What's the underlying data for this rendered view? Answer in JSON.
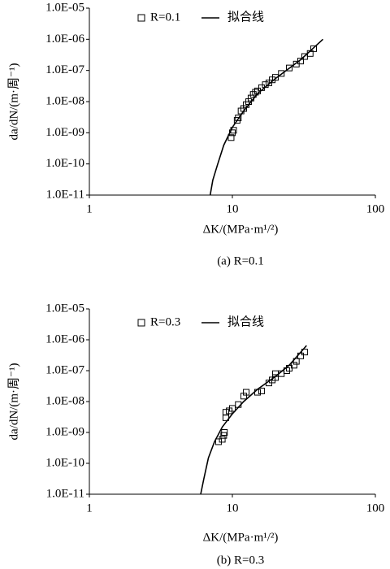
{
  "chart_data": [
    {
      "type": "scatter",
      "caption": "(a) R=0.1",
      "x_label": "ΔK/(MPa·m¹/²)",
      "y_label": "da/dN/(m·周⁻¹)",
      "xscale": "log",
      "yscale": "log",
      "xlim": [
        1,
        100
      ],
      "ylim": [
        1e-11,
        1e-05
      ],
      "xticks": [
        1,
        10,
        100
      ],
      "yticks": [
        {
          "value": 1e-11,
          "label": "1.0E-11"
        },
        {
          "value": 1e-10,
          "label": "1.0E-10"
        },
        {
          "value": 1e-09,
          "label": "1.0E-09"
        },
        {
          "value": 1e-08,
          "label": "1.0E-08"
        },
        {
          "value": 1e-07,
          "label": "1.0E-07"
        },
        {
          "value": 1e-06,
          "label": "1.0E-06"
        },
        {
          "value": 1e-05,
          "label": "1.0E-05"
        }
      ],
      "series": [
        {
          "name": "R=0.1",
          "type": "scatter",
          "color": "#000000",
          "x": [
            9.8,
            10,
            10.2,
            10.8,
            11,
            11.5,
            12,
            12.5,
            13,
            13.5,
            14,
            14.5,
            15,
            16,
            17,
            18,
            19,
            20,
            22,
            25,
            28,
            30,
            32,
            35,
            37
          ],
          "values": [
            7e-10,
            1e-09,
            1.2e-09,
            2.5e-09,
            3e-09,
            5e-09,
            6e-09,
            8e-09,
            1e-08,
            1.3e-08,
            1.7e-08,
            2e-08,
            2.2e-08,
            2.8e-08,
            3.5e-08,
            4e-08,
            5e-08,
            6e-08,
            8e-08,
            1.2e-07,
            1.6e-07,
            2e-07,
            2.8e-07,
            3.5e-07,
            5e-07
          ]
        },
        {
          "name": "拟合线",
          "type": "line",
          "color": "#000000",
          "x": [
            7.0,
            7.3,
            7.9,
            8.7,
            10,
            12,
            15,
            20,
            30,
            43
          ],
          "values": [
            1e-11,
            3e-11,
            1e-10,
            4e-10,
            1.5e-09,
            5e-09,
            1.8e-08,
            5.5e-08,
            2.2e-07,
            1e-06
          ]
        }
      ]
    },
    {
      "type": "scatter",
      "caption": "(b) R=0.3",
      "x_label": "ΔK/(MPa·m¹/²)",
      "y_label": "da/dN/(m·周⁻¹)",
      "xscale": "log",
      "yscale": "log",
      "xlim": [
        1,
        100
      ],
      "ylim": [
        1e-11,
        1e-05
      ],
      "xticks": [
        1,
        10,
        100
      ],
      "yticks": [
        {
          "value": 1e-11,
          "label": "1.0E-11"
        },
        {
          "value": 1e-10,
          "label": "1.0E-10"
        },
        {
          "value": 1e-09,
          "label": "1.0E-09"
        },
        {
          "value": 1e-08,
          "label": "1.0E-08"
        },
        {
          "value": 1e-07,
          "label": "1.0E-07"
        },
        {
          "value": 1e-06,
          "label": "1.0E-06"
        },
        {
          "value": 1e-05,
          "label": "1.0E-05"
        }
      ],
      "series": [
        {
          "name": "R=0.3",
          "type": "scatter",
          "color": "#000000",
          "x": [
            8,
            8.5,
            8.7,
            8.8,
            9,
            9,
            9.5,
            10,
            11,
            12,
            12.5,
            15,
            16,
            18,
            19,
            20,
            20,
            22,
            24,
            25,
            27,
            28,
            30,
            32
          ],
          "values": [
            5e-10,
            6e-10,
            8e-10,
            1e-09,
            3e-09,
            4.5e-09,
            5e-09,
            6e-09,
            8e-09,
            1.5e-08,
            2e-08,
            2e-08,
            2.2e-08,
            4e-08,
            5e-08,
            6e-08,
            8e-08,
            8e-08,
            1e-07,
            1.2e-07,
            1.5e-07,
            2e-07,
            3e-07,
            4e-07
          ]
        },
        {
          "name": "拟合线",
          "type": "line",
          "color": "#000000",
          "x": [
            6.0,
            6.3,
            6.8,
            7.5,
            8.5,
            10,
            12,
            15,
            20,
            25,
            33
          ],
          "values": [
            1e-11,
            3e-11,
            1.5e-10,
            5e-10,
            1.5e-09,
            4e-09,
            1e-08,
            2.5e-08,
            6.5e-08,
            1.5e-07,
            6.5e-07
          ]
        }
      ]
    }
  ]
}
